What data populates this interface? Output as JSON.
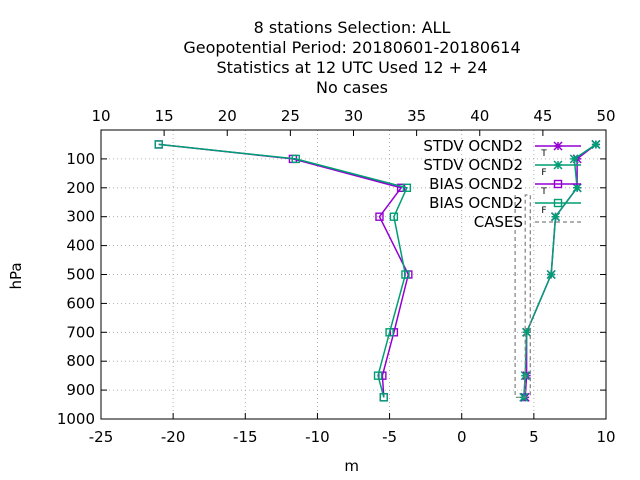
{
  "chart_data": {
    "type": "line",
    "title_lines": [
      "8 stations Selection: ALL",
      "Geopotential  Period: 20180601-20180614",
      "Statistics at 12 UTC  Used  12 + 24",
      "No cases"
    ],
    "xlabel": "m",
    "ylabel": "hPa",
    "xlim": [
      -25,
      10
    ],
    "ylim": [
      1000,
      0
    ],
    "x_ticks": [
      "-25",
      "-20",
      "-15",
      "-10",
      "-5",
      "0",
      "5",
      "10"
    ],
    "x2lim": [
      10,
      50
    ],
    "x2_ticks": [
      "10",
      "15",
      "20",
      "25",
      "30",
      "35",
      "40",
      "45",
      "50"
    ],
    "y_ticks": [
      "100",
      "200",
      "300",
      "400",
      "500",
      "600",
      "700",
      "800",
      "900",
      "1000"
    ],
    "grid": true,
    "legend_position": "top-right",
    "series": [
      {
        "name": "STDV OCND2",
        "subscript": "T",
        "color": "#9400d3",
        "marker": "x-star",
        "points": [
          [
            9.3,
            50
          ],
          [
            8.0,
            100
          ],
          [
            8.0,
            200
          ],
          [
            6.5,
            300
          ],
          [
            6.2,
            500
          ],
          [
            4.5,
            700
          ],
          [
            4.5,
            850
          ],
          [
            4.4,
            925
          ]
        ]
      },
      {
        "name": "STDV OCND2",
        "subscript": "F",
        "color": "#009e73",
        "marker": "x-star",
        "points": [
          [
            9.3,
            50
          ],
          [
            7.8,
            100
          ],
          [
            8.0,
            200
          ],
          [
            6.5,
            300
          ],
          [
            6.2,
            500
          ],
          [
            4.5,
            700
          ],
          [
            4.4,
            850
          ],
          [
            4.3,
            925
          ]
        ]
      },
      {
        "name": "BIAS OCND2",
        "subscript": "T",
        "color": "#9400d3",
        "marker": "open-square",
        "points": [
          [
            -21.0,
            50
          ],
          [
            -11.7,
            100
          ],
          [
            -4.2,
            200
          ],
          [
            -5.7,
            300
          ],
          [
            -3.7,
            500
          ],
          [
            -4.7,
            700
          ],
          [
            -5.5,
            850
          ],
          [
            -5.4,
            925
          ]
        ]
      },
      {
        "name": "BIAS OCND2",
        "subscript": "F",
        "color": "#009e73",
        "marker": "open-square",
        "points": [
          [
            -21.0,
            50
          ],
          [
            -11.5,
            100
          ],
          [
            -3.8,
            200
          ],
          [
            -4.7,
            300
          ],
          [
            -3.9,
            500
          ],
          [
            -5.0,
            700
          ],
          [
            -5.8,
            850
          ],
          [
            -5.4,
            925
          ]
        ]
      },
      {
        "name": "CASES",
        "subscript": "",
        "color": "#808080",
        "marker": "dashed",
        "axis": "x2",
        "points": [
          [
            42.8,
            225
          ],
          [
            42.8,
            925
          ],
          [
            43.6,
            925
          ],
          [
            43.6,
            225
          ],
          [
            44.0,
            225
          ],
          [
            44.0,
            925
          ]
        ]
      }
    ]
  }
}
